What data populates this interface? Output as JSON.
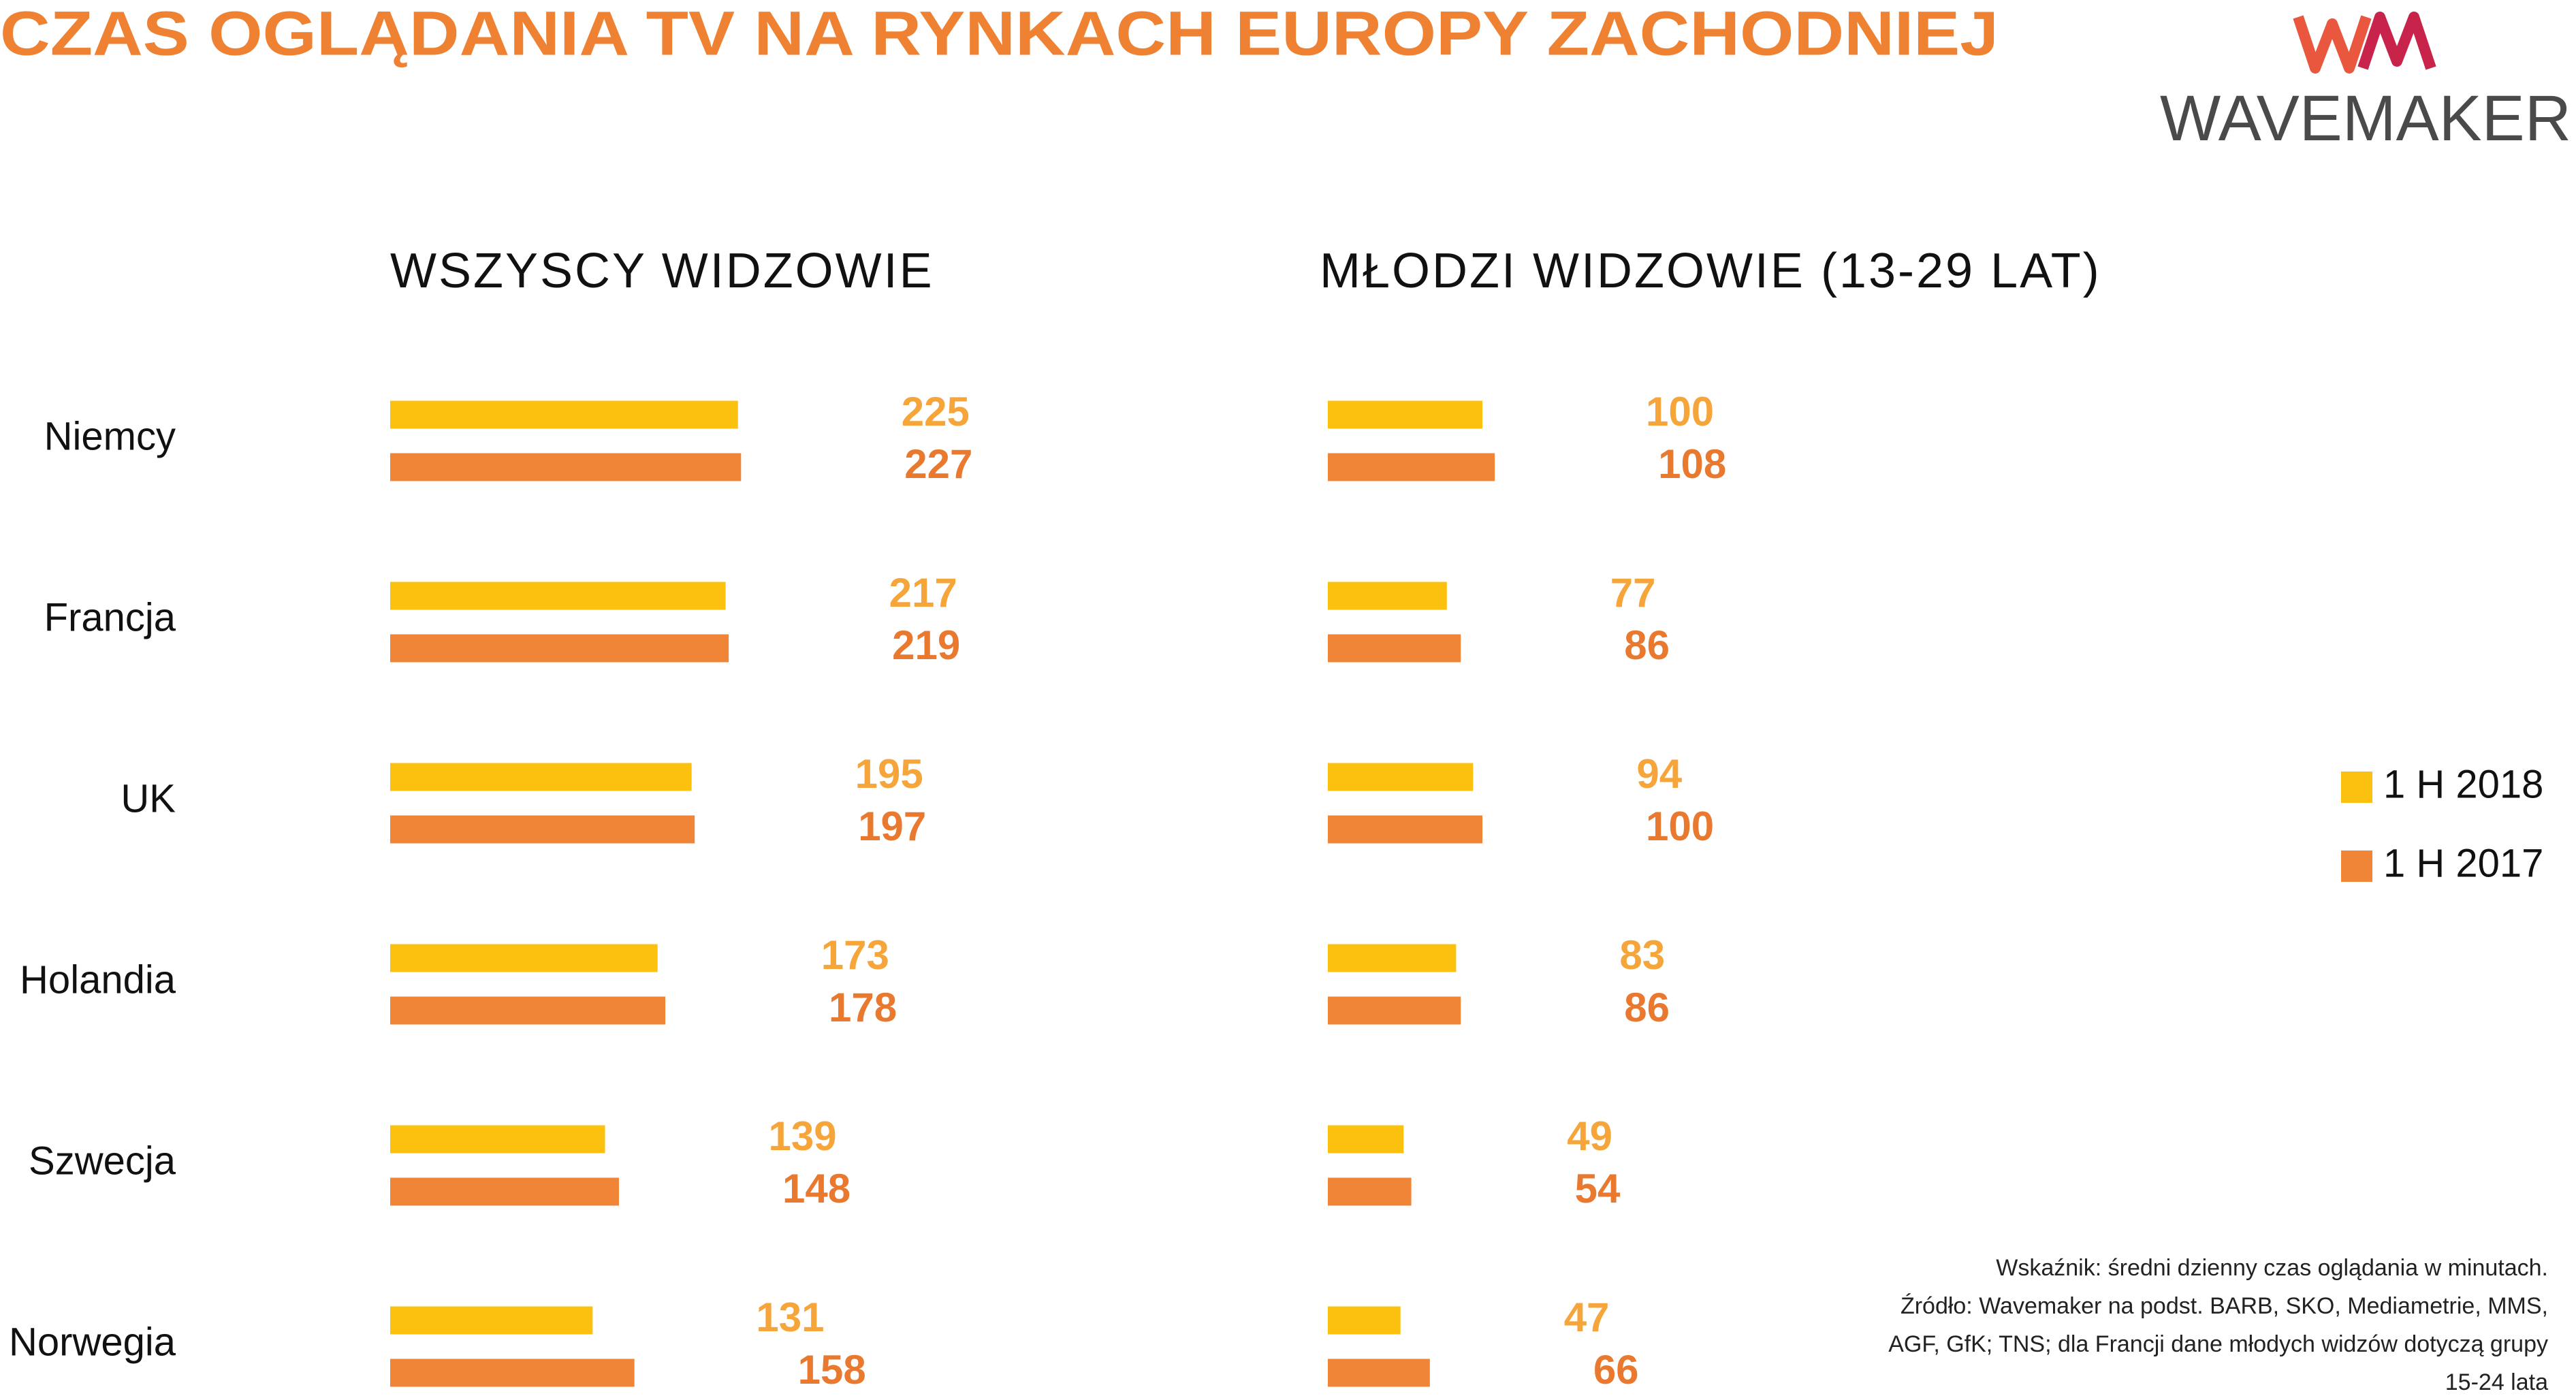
{
  "title": "CZAS OGLĄDANIA TV NA RYNKACH EUROPY ZACHODNIEJ",
  "logo": "WAVEMAKER",
  "note": [
    "Wskaźnik: średni dzienny czas oglądania w minutach.",
    "Źródło: Wavemaker na podst. BARB, SKO, Mediametrie, MMS,",
    "AGF, GfK; TNS; dla Francji dane młodych widzów dotyczą grupy",
    "15-24 lata"
  ],
  "chart_data": [
    {
      "type": "bar",
      "orientation": "horizontal",
      "title": "WSZYSCY WIDZOWIE",
      "categories": [
        "Niemcy",
        "Francja",
        "UK",
        "Holandia",
        "Szwecja",
        "Norwegia"
      ],
      "series": [
        {
          "name": "1 H 2018",
          "color": "#fcc10f",
          "label_color": "#f5a53a",
          "values": [
            225,
            217,
            195,
            173,
            139,
            131
          ]
        },
        {
          "name": "1 H 2017",
          "color": "#f08437",
          "label_color": "#e8792f",
          "values": [
            227,
            219,
            197,
            178,
            148,
            158
          ]
        }
      ]
    },
    {
      "type": "bar",
      "orientation": "horizontal",
      "title": "MŁODZI WIDZOWIE (13-29 LAT)",
      "series": [
        {
          "color": "#fcc10f",
          "label_color": "#f5a53a",
          "values": [
            100,
            77,
            94,
            83,
            49,
            47
          ]
        },
        {
          "color": "#f08437",
          "label_color": "#e8792f",
          "values": [
            108,
            86,
            100,
            86,
            54,
            66
          ]
        }
      ]
    }
  ]
}
